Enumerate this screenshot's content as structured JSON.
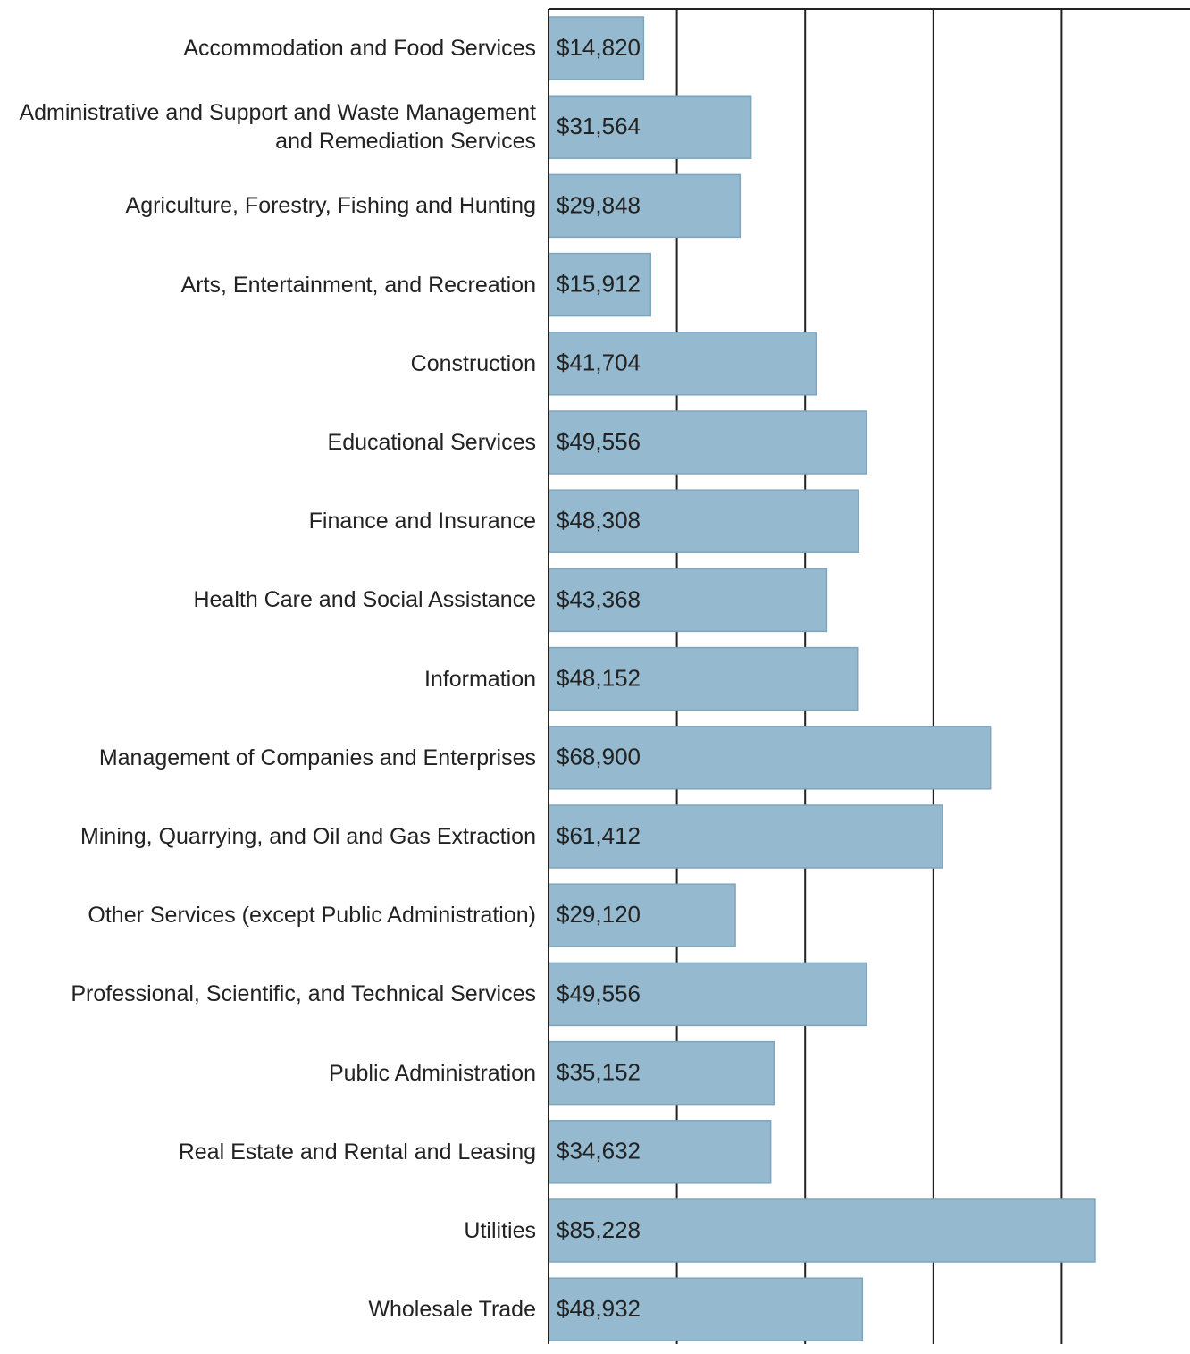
{
  "chart_data": {
    "type": "barh",
    "categories": [
      "Accommodation and Food Services",
      "Administrative and Support and Waste Management and Remediation Services",
      "Agriculture, Forestry, Fishing and Hunting",
      "Arts, Entertainment, and Recreation",
      "Construction",
      "Educational Services",
      "Finance and Insurance",
      "Health Care and Social Assistance",
      "Information",
      "Management of Companies and Enterprises",
      "Mining, Quarrying, and Oil and Gas Extraction",
      "Other Services (except Public Administration)",
      "Professional, Scientific, and Technical Services",
      "Public Administration",
      "Real Estate and Rental and Leasing",
      "Utilities",
      "Wholesale Trade"
    ],
    "values": [
      14820,
      31564,
      29848,
      15912,
      41704,
      49556,
      48308,
      43368,
      48152,
      68900,
      61412,
      29120,
      49556,
      35152,
      34632,
      85228,
      48932
    ],
    "value_labels": [
      "$14,820",
      "$31,564",
      "$29,848",
      "$15,912",
      "$41,704",
      "$49,556",
      "$48,308",
      "$43,368",
      "$48,152",
      "$68,900",
      "$61,412",
      "$29,120",
      "$49,556",
      "$35,152",
      "$34,632",
      "$85,228",
      "$48,932"
    ],
    "color": "#95b9cf",
    "xlim": [
      0,
      100000
    ],
    "xticks": [
      0,
      20000,
      40000,
      60000,
      80000
    ],
    "grid": true
  }
}
